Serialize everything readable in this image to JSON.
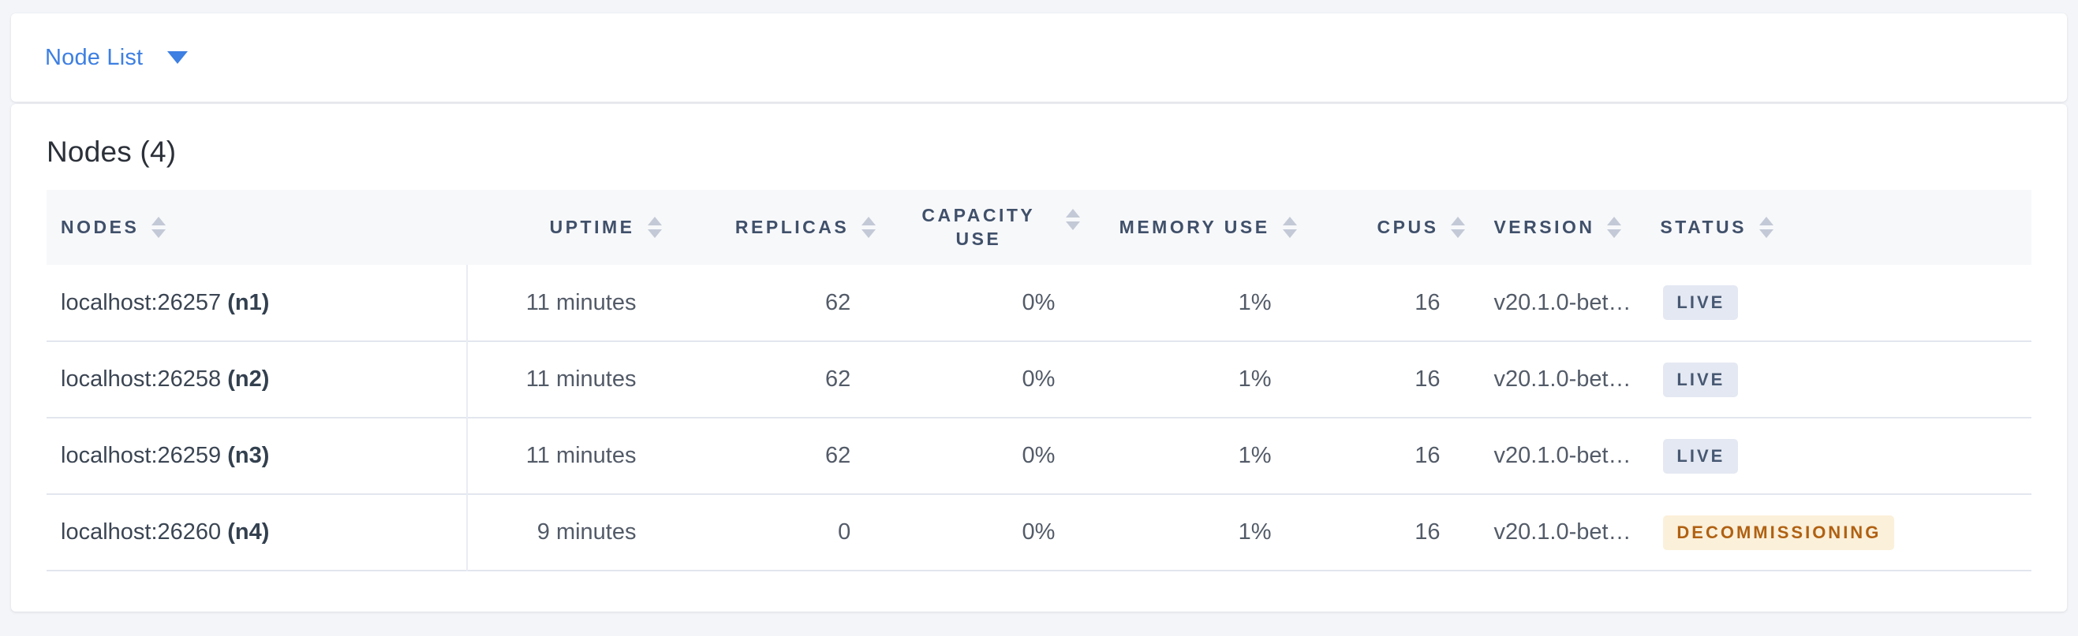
{
  "topbar": {
    "dropdown_label": "Node List"
  },
  "main": {
    "title": "Nodes (4)",
    "table": {
      "columns": [
        {
          "key": "nodes",
          "label": "NODES",
          "align": "left"
        },
        {
          "key": "uptime",
          "label": "UPTIME",
          "align": "right"
        },
        {
          "key": "replicas",
          "label": "REPLICAS",
          "align": "right"
        },
        {
          "key": "capacity",
          "label": "CAPACITY USE",
          "align": "right",
          "wrap": true
        },
        {
          "key": "memory",
          "label": "MEMORY USE",
          "align": "right"
        },
        {
          "key": "cpus",
          "label": "CPUS",
          "align": "right"
        },
        {
          "key": "version",
          "label": "VERSION",
          "align": "left"
        },
        {
          "key": "status",
          "label": "STATUS",
          "align": "left"
        }
      ],
      "rows": [
        {
          "address": "localhost:26257",
          "node_id": "(n1)",
          "uptime": "11 minutes",
          "replicas": "62",
          "capacity_use": "0%",
          "memory_use": "1%",
          "cpus": "16",
          "version": "v20.1.0-bet…",
          "status": "LIVE",
          "status_type": "live"
        },
        {
          "address": "localhost:26258",
          "node_id": "(n2)",
          "uptime": "11 minutes",
          "replicas": "62",
          "capacity_use": "0%",
          "memory_use": "1%",
          "cpus": "16",
          "version": "v20.1.0-bet…",
          "status": "LIVE",
          "status_type": "live"
        },
        {
          "address": "localhost:26259",
          "node_id": "(n3)",
          "uptime": "11 minutes",
          "replicas": "62",
          "capacity_use": "0%",
          "memory_use": "1%",
          "cpus": "16",
          "version": "v20.1.0-bet…",
          "status": "LIVE",
          "status_type": "live"
        },
        {
          "address": "localhost:26260",
          "node_id": "(n4)",
          "uptime": "9 minutes",
          "replicas": "0",
          "capacity_use": "0%",
          "memory_use": "1%",
          "cpus": "16",
          "version": "v20.1.0-bet…",
          "status": "DECOMMISSIONING",
          "status_type": "decommissioning"
        }
      ]
    }
  },
  "colors": {
    "accent_blue": "#3d7fe2",
    "page_background": "#f4f5f9",
    "table_header_background": "#f7f8fa",
    "live_badge_background": "#e4e8f2",
    "live_badge_text": "#475872",
    "decommissioning_badge_background": "#fbf0da",
    "decommissioning_badge_text": "#b06112"
  }
}
